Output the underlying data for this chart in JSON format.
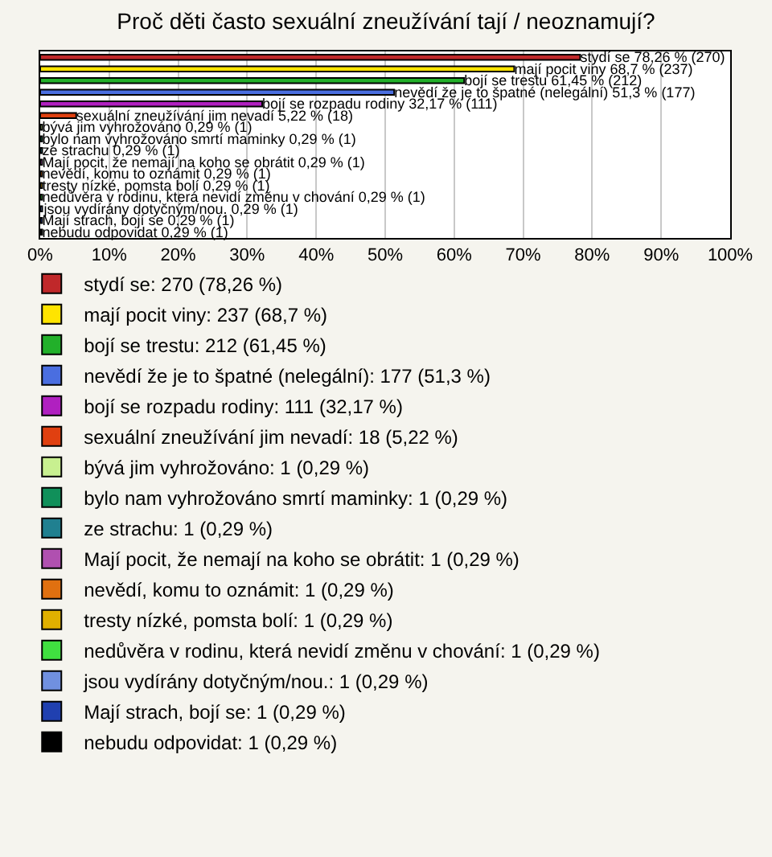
{
  "chart_data": {
    "type": "bar",
    "orientation": "horizontal",
    "title": "Proč děti často sexuální zneužívání tají / neoznamují?",
    "categories": [
      null,
      null,
      null,
      null,
      null,
      null,
      null,
      null,
      null,
      null,
      null,
      null,
      null,
      null,
      null,
      null
    ],
    "xlim": [
      0,
      100
    ],
    "xticks": [
      {
        "value": 0,
        "label": "0%"
      },
      {
        "value": 10,
        "label": "10%"
      },
      {
        "value": 20,
        "label": "20%"
      },
      {
        "value": 30,
        "label": "30%"
      },
      {
        "value": 40,
        "label": "40%"
      },
      {
        "value": 50,
        "label": "50%"
      },
      {
        "value": 60,
        "label": "60%"
      },
      {
        "value": 70,
        "label": "70%"
      },
      {
        "value": 80,
        "label": "80%"
      },
      {
        "value": 90,
        "label": "90%"
      },
      {
        "value": 100,
        "label": "100%"
      }
    ],
    "grid": "x",
    "legend": "bottom",
    "tick_labels": "x",
    "series": [
      {
        "name": "stydí se: 270 (78,26 %)",
        "color": "#c0282a",
        "values": [
          78.26,
          null,
          null,
          null,
          null,
          null,
          null,
          null,
          null,
          null,
          null,
          null,
          null,
          null,
          null,
          null
        ],
        "value_labels": [
          "stydí se 78,26 % (270)",
          null,
          null,
          null,
          null,
          null,
          null,
          null,
          null,
          null,
          null,
          null,
          null,
          null,
          null,
          null
        ]
      },
      {
        "name": "mají pocit viny: 237 (68,7 %)",
        "color": "#ffe400",
        "values": [
          null,
          68.7,
          null,
          null,
          null,
          null,
          null,
          null,
          null,
          null,
          null,
          null,
          null,
          null,
          null,
          null
        ],
        "value_labels": [
          null,
          "mají pocit viny 68,7 % (237)",
          null,
          null,
          null,
          null,
          null,
          null,
          null,
          null,
          null,
          null,
          null,
          null,
          null,
          null
        ]
      },
      {
        "name": "bojí se trestu: 212 (61,45 %)",
        "color": "#22b02a",
        "values": [
          null,
          null,
          61.45,
          null,
          null,
          null,
          null,
          null,
          null,
          null,
          null,
          null,
          null,
          null,
          null,
          null
        ],
        "value_labels": [
          null,
          null,
          "bojí se trestu 61,45 % (212)",
          null,
          null,
          null,
          null,
          null,
          null,
          null,
          null,
          null,
          null,
          null,
          null,
          null
        ]
      },
      {
        "name": "nevědí že je to špatné (nelegální): 177 (51,3 %)",
        "color": "#4a6ee0",
        "values": [
          null,
          null,
          null,
          51.3,
          null,
          null,
          null,
          null,
          null,
          null,
          null,
          null,
          null,
          null,
          null,
          null
        ],
        "value_labels": [
          null,
          null,
          null,
          "nevědí že je to špatné (nelegální) 51,3 % (177)",
          null,
          null,
          null,
          null,
          null,
          null,
          null,
          null,
          null,
          null,
          null,
          null
        ]
      },
      {
        "name": "bojí se rozpadu rodiny: 111 (32,17 %)",
        "color": "#b020c0",
        "values": [
          null,
          null,
          null,
          null,
          32.17,
          null,
          null,
          null,
          null,
          null,
          null,
          null,
          null,
          null,
          null,
          null
        ],
        "value_labels": [
          null,
          null,
          null,
          null,
          "bojí se rozpadu rodiny 32,17 % (111)",
          null,
          null,
          null,
          null,
          null,
          null,
          null,
          null,
          null,
          null,
          null
        ]
      },
      {
        "name": "sexuální zneužívání jim nevadí: 18 (5,22 %)",
        "color": "#e04010",
        "values": [
          null,
          null,
          null,
          null,
          null,
          5.22,
          null,
          null,
          null,
          null,
          null,
          null,
          null,
          null,
          null,
          null
        ],
        "value_labels": [
          null,
          null,
          null,
          null,
          null,
          "sexuální zneužívání jim nevadí 5,22 % (18)",
          null,
          null,
          null,
          null,
          null,
          null,
          null,
          null,
          null,
          null
        ]
      },
      {
        "name": "bývá jim vyhrožováno: 1 (0,29 %)",
        "color": "#c8f090",
        "values": [
          null,
          null,
          null,
          null,
          null,
          null,
          0.29,
          null,
          null,
          null,
          null,
          null,
          null,
          null,
          null,
          null
        ],
        "value_labels": [
          null,
          null,
          null,
          null,
          null,
          null,
          "bývá jim vyhrožováno 0,29 % (1)",
          null,
          null,
          null,
          null,
          null,
          null,
          null,
          null,
          null
        ]
      },
      {
        "name": "bylo nam vyhrožováno smrtí maminky: 1 (0,29 %)",
        "color": "#10905a",
        "values": [
          null,
          null,
          null,
          null,
          null,
          null,
          null,
          0.29,
          null,
          null,
          null,
          null,
          null,
          null,
          null,
          null
        ],
        "value_labels": [
          null,
          null,
          null,
          null,
          null,
          null,
          null,
          "bylo nam vyhrožováno smrtí maminky 0,29 % (1)",
          null,
          null,
          null,
          null,
          null,
          null,
          null,
          null
        ]
      },
      {
        "name": "ze strachu: 1 (0,29 %)",
        "color": "#208090",
        "values": [
          null,
          null,
          null,
          null,
          null,
          null,
          null,
          null,
          0.29,
          null,
          null,
          null,
          null,
          null,
          null,
          null
        ],
        "value_labels": [
          null,
          null,
          null,
          null,
          null,
          null,
          null,
          null,
          "ze strachu 0,29 % (1)",
          null,
          null,
          null,
          null,
          null,
          null,
          null
        ]
      },
      {
        "name": "Mají pocit, že nemají na koho se obrátit: 1 (0,29 %)",
        "color": "#b050b0",
        "values": [
          null,
          null,
          null,
          null,
          null,
          null,
          null,
          null,
          null,
          0.29,
          null,
          null,
          null,
          null,
          null,
          null
        ],
        "value_labels": [
          null,
          null,
          null,
          null,
          null,
          null,
          null,
          null,
          null,
          "Mají pocit, že nemají na koho se obrátit 0,29 % (1)",
          null,
          null,
          null,
          null,
          null,
          null
        ]
      },
      {
        "name": "nevědí, komu to oznámit: 1 (0,29 %)",
        "color": "#e07010",
        "values": [
          null,
          null,
          null,
          null,
          null,
          null,
          null,
          null,
          null,
          null,
          0.29,
          null,
          null,
          null,
          null,
          null
        ],
        "value_labels": [
          null,
          null,
          null,
          null,
          null,
          null,
          null,
          null,
          null,
          null,
          "nevědí, komu to oznámit 0,29 % (1)",
          null,
          null,
          null,
          null,
          null
        ]
      },
      {
        "name": "tresty nízké, pomsta bolí: 1 (0,29 %)",
        "color": "#e0b000",
        "values": [
          null,
          null,
          null,
          null,
          null,
          null,
          null,
          null,
          null,
          null,
          null,
          0.29,
          null,
          null,
          null,
          null
        ],
        "value_labels": [
          null,
          null,
          null,
          null,
          null,
          null,
          null,
          null,
          null,
          null,
          null,
          "tresty nízké, pomsta bolí 0,29 % (1)",
          null,
          null,
          null,
          null
        ]
      },
      {
        "name": "nedůvěra v rodinu, která nevidí změnu v chování: 1 (0,29 %)",
        "color": "#40e040",
        "values": [
          null,
          null,
          null,
          null,
          null,
          null,
          null,
          null,
          null,
          null,
          null,
          null,
          0.29,
          null,
          null,
          null
        ],
        "value_labels": [
          null,
          null,
          null,
          null,
          null,
          null,
          null,
          null,
          null,
          null,
          null,
          null,
          "nedůvěra v rodinu, která nevidí změnu v chování 0,29 % (1)",
          null,
          null,
          null
        ]
      },
      {
        "name": "jsou vydírány dotyčným/nou.: 1 (0,29 %)",
        "color": "#7090e0",
        "values": [
          null,
          null,
          null,
          null,
          null,
          null,
          null,
          null,
          null,
          null,
          null,
          null,
          null,
          0.29,
          null,
          null
        ],
        "value_labels": [
          null,
          null,
          null,
          null,
          null,
          null,
          null,
          null,
          null,
          null,
          null,
          null,
          null,
          "jsou vydírány dotyčným/nou. 0,29 % (1)",
          null,
          null
        ]
      },
      {
        "name": "Mají strach, bojí se: 1 (0,29 %)",
        "color": "#2040b0",
        "values": [
          null,
          null,
          null,
          null,
          null,
          null,
          null,
          null,
          null,
          null,
          null,
          null,
          null,
          null,
          0.29,
          null
        ],
        "value_labels": [
          null,
          null,
          null,
          null,
          null,
          null,
          null,
          null,
          null,
          null,
          null,
          null,
          null,
          null,
          "Mají strach, bojí se 0,29 % (1)",
          null
        ]
      },
      {
        "name": "nebudu odpovidat: 1 (0,29 %)",
        "color": "#000000",
        "values": [
          null,
          null,
          null,
          null,
          null,
          null,
          null,
          null,
          null,
          null,
          null,
          null,
          null,
          null,
          null,
          0.29
        ],
        "value_labels": [
          null,
          null,
          null,
          null,
          null,
          null,
          null,
          null,
          null,
          null,
          null,
          null,
          null,
          null,
          null,
          "nebudu odpovidat 0,29 % (1)"
        ]
      }
    ]
  }
}
